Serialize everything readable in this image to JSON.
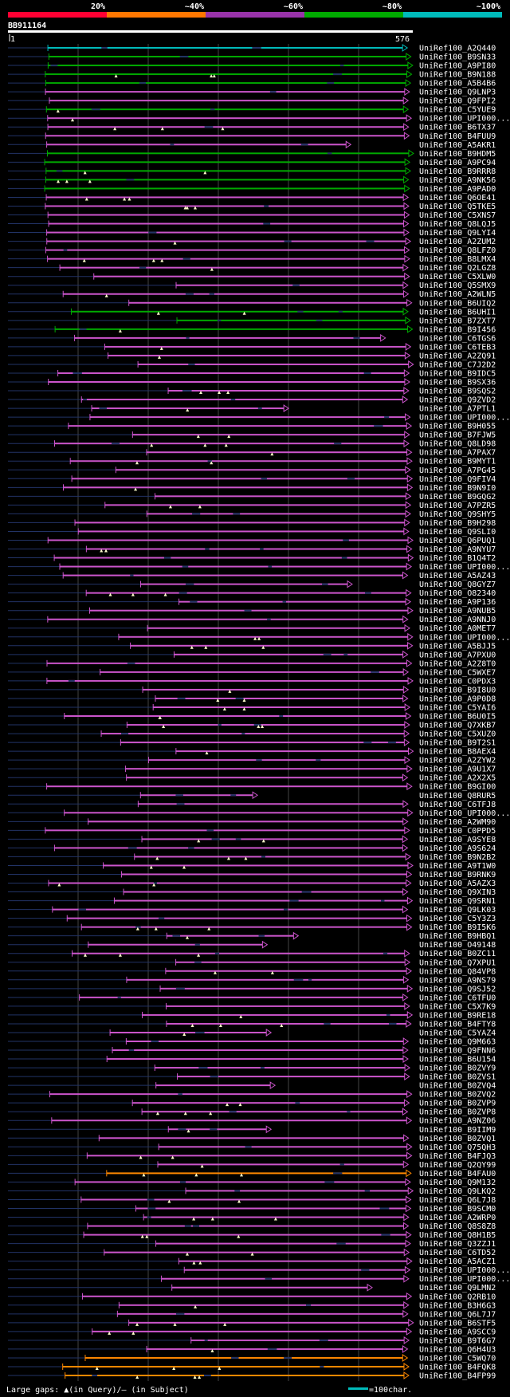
{
  "title": "BB911164",
  "scale": {
    "start": "1",
    "end": "576"
  },
  "identity_bins": [
    {
      "label": "20%",
      "color": "#ff0033"
    },
    {
      "label": "~40%",
      "color": "#ff7700"
    },
    {
      "label": "~60%",
      "color": "#9933aa"
    },
    {
      "label": "~80%",
      "color": "#00aa00"
    },
    {
      "label": "~100%",
      "color": "#00bbbb"
    }
  ],
  "hits": [
    {
      "name": "UniRef100_A2Q440",
      "color": "cyan"
    },
    {
      "name": "UniRef100_B9SN33",
      "color": "green"
    },
    {
      "name": "UniRef100_A9PI80",
      "color": "green"
    },
    {
      "name": "UniRef100_B9N188",
      "color": "green"
    },
    {
      "name": "UniRef100_A5B4B6",
      "color": "green"
    },
    {
      "name": "UniRef100_Q9LNP3",
      "color": "purple"
    },
    {
      "name": "UniRef100_Q9FPI2",
      "color": "purple"
    },
    {
      "name": "UniRef100_C5YUE9",
      "color": "green"
    },
    {
      "name": "UniRef100_UPI000...",
      "color": "purple"
    },
    {
      "name": "UniRef100_B6TX37",
      "color": "purple"
    },
    {
      "name": "UniRef100_B4FUU9",
      "color": "purple"
    },
    {
      "name": "UniRef100_A5AKR1",
      "color": "purple"
    },
    {
      "name": "UniRef100_B9HDM5",
      "color": "green"
    },
    {
      "name": "UniRef100_A9PC94",
      "color": "green"
    },
    {
      "name": "UniRef100_B9RRR8",
      "color": "green"
    },
    {
      "name": "UniRef100_A9NK56",
      "color": "green"
    },
    {
      "name": "UniRef100_A9PAD0",
      "color": "green"
    },
    {
      "name": "UniRef100_Q6OE41",
      "color": "purple"
    },
    {
      "name": "UniRef100_Q5TKE5",
      "color": "purple"
    },
    {
      "name": "UniRef100_C5XNS7",
      "color": "purple"
    },
    {
      "name": "UniRef100_Q8LQJ5",
      "color": "purple"
    },
    {
      "name": "UniRef100_Q9LYI4",
      "color": "purple"
    },
    {
      "name": "UniRef100_A2ZUM2",
      "color": "purple"
    },
    {
      "name": "UniRef100_Q8LFZ0",
      "color": "purple"
    },
    {
      "name": "UniRef100_B8LMX4",
      "color": "purple"
    },
    {
      "name": "UniRef100_Q2LGZ8",
      "color": "purple"
    },
    {
      "name": "UniRef100_C5XLW0",
      "color": "purple"
    },
    {
      "name": "UniRef100_Q5SMX9",
      "color": "purple"
    },
    {
      "name": "UniRef100_A2WLN5",
      "color": "purple"
    },
    {
      "name": "UniRef100_B6UIQ2",
      "color": "purple"
    },
    {
      "name": "UniRef100_B6UHI1",
      "color": "green"
    },
    {
      "name": "UniRef100_B7ZXT7",
      "color": "green"
    },
    {
      "name": "UniRef100_B9I456",
      "color": "green"
    },
    {
      "name": "UniRef100_C6TGS6",
      "color": "purple"
    },
    {
      "name": "UniRef100_C6TEB3",
      "color": "purple"
    },
    {
      "name": "UniRef100_A2ZQ91",
      "color": "purple"
    },
    {
      "name": "UniRef100_C7J2D2",
      "color": "purple"
    },
    {
      "name": "UniRef100_B9IDC5",
      "color": "purple"
    },
    {
      "name": "UniRef100_B9SX36",
      "color": "purple"
    },
    {
      "name": "UniRef100_B9SQS2",
      "color": "purple"
    },
    {
      "name": "UniRef100_Q9ZVD2",
      "color": "purple"
    },
    {
      "name": "UniRef100_A7PTL1",
      "color": "purple"
    },
    {
      "name": "UniRef100_UPI000...",
      "color": "purple"
    },
    {
      "name": "UniRef100_B9H055",
      "color": "purple"
    },
    {
      "name": "UniRef100_B7FJW5",
      "color": "purple"
    },
    {
      "name": "UniRef100_Q8LD98",
      "color": "purple"
    },
    {
      "name": "UniRef100_A7PAX7",
      "color": "purple"
    },
    {
      "name": "UniRef100_B9MYT1",
      "color": "purple"
    },
    {
      "name": "UniRef100_A7PG45",
      "color": "purple"
    },
    {
      "name": "UniRef100_Q9FIV4",
      "color": "purple"
    },
    {
      "name": "UniRef100_B9N9I0",
      "color": "purple"
    },
    {
      "name": "UniRef100_B9GQG2",
      "color": "purple"
    },
    {
      "name": "UniRef100_A7PZR5",
      "color": "purple"
    },
    {
      "name": "UniRef100_Q9SHY5",
      "color": "purple"
    },
    {
      "name": "UniRef100_B9H298",
      "color": "purple"
    },
    {
      "name": "UniRef100_Q9SLI0",
      "color": "purple"
    },
    {
      "name": "UniRef100_Q6PUQ1",
      "color": "purple"
    },
    {
      "name": "UniRef100_A9NYU7",
      "color": "purple"
    },
    {
      "name": "UniRef100_B1Q4T2",
      "color": "purple"
    },
    {
      "name": "UniRef100_UPI000...",
      "color": "purple"
    },
    {
      "name": "UniRef100_A5AZ43",
      "color": "purple"
    },
    {
      "name": "UniRef100_Q8GYZ7",
      "color": "purple"
    },
    {
      "name": "UniRef100_O82340",
      "color": "purple"
    },
    {
      "name": "UniRef100_A9P136",
      "color": "purple"
    },
    {
      "name": "UniRef100_A9NUB5",
      "color": "purple"
    },
    {
      "name": "UniRef100_A9NNJ0",
      "color": "purple"
    },
    {
      "name": "UniRef100_A0MET7",
      "color": "purple"
    },
    {
      "name": "UniRef100_UPI000...",
      "color": "purple"
    },
    {
      "name": "UniRef100_A5BJJ5",
      "color": "purple"
    },
    {
      "name": "UniRef100_A7PXU0",
      "color": "purple"
    },
    {
      "name": "UniRef100_A2Z8T0",
      "color": "purple"
    },
    {
      "name": "UniRef100_C5WXE7",
      "color": "purple"
    },
    {
      "name": "UniRef100_C0PDX3",
      "color": "purple"
    },
    {
      "name": "UniRef100_B9I8U0",
      "color": "purple"
    },
    {
      "name": "UniRef100_A9P0D8",
      "color": "purple"
    },
    {
      "name": "UniRef100_C5YAI6",
      "color": "purple"
    },
    {
      "name": "UniRef100_B6U0I5",
      "color": "purple"
    },
    {
      "name": "UniRef100_Q7XKB7",
      "color": "purple"
    },
    {
      "name": "UniRef100_C5XUZ0",
      "color": "purple"
    },
    {
      "name": "UniRef100_B9T2S1",
      "color": "purple"
    },
    {
      "name": "UniRef100_B8AEX4",
      "color": "purple"
    },
    {
      "name": "UniRef100_A2ZYW2",
      "color": "purple"
    },
    {
      "name": "UniRef100_A9U1X7",
      "color": "purple"
    },
    {
      "name": "UniRef100_A2X2X5",
      "color": "purple"
    },
    {
      "name": "UniRef100_B9GI00",
      "color": "purple"
    },
    {
      "name": "UniRef100_Q8RUR5",
      "color": "purple"
    },
    {
      "name": "UniRef100_C6TFJ8",
      "color": "purple"
    },
    {
      "name": "UniRef100_UPI000...",
      "color": "purple"
    },
    {
      "name": "UniRef100_A2WM90",
      "color": "purple"
    },
    {
      "name": "UniRef100_C0PPD5",
      "color": "purple"
    },
    {
      "name": "UniRef100_A9SYE8",
      "color": "purple"
    },
    {
      "name": "UniRef100_A9S624",
      "color": "purple"
    },
    {
      "name": "UniRef100_B9N2B2",
      "color": "purple"
    },
    {
      "name": "UniRef100_A9T1W0",
      "color": "purple"
    },
    {
      "name": "UniRef100_B9RNK9",
      "color": "purple"
    },
    {
      "name": "UniRef100_A5AZX3",
      "color": "purple"
    },
    {
      "name": "UniRef100_Q9XIN3",
      "color": "purple"
    },
    {
      "name": "UniRef100_Q9SRN1",
      "color": "purple"
    },
    {
      "name": "UniRef100_Q9LK03",
      "color": "purple"
    },
    {
      "name": "UniRef100_C5Y3Z3",
      "color": "purple"
    },
    {
      "name": "UniRef100_B9I5K6",
      "color": "purple"
    },
    {
      "name": "UniRef100_B9HBQ1",
      "color": "purple"
    },
    {
      "name": "UniRef100_O49148",
      "color": "purple"
    },
    {
      "name": "UniRef100_B0ZC11",
      "color": "purple"
    },
    {
      "name": "UniRef100_Q7XPU1",
      "color": "purple"
    },
    {
      "name": "UniRef100_Q84VP8",
      "color": "purple"
    },
    {
      "name": "UniRef100_A9NS79",
      "color": "purple"
    },
    {
      "name": "UniRef100_Q9SJ52",
      "color": "purple"
    },
    {
      "name": "UniRef100_C6TFU0",
      "color": "purple"
    },
    {
      "name": "UniRef100_C5X7K9",
      "color": "purple"
    },
    {
      "name": "UniRef100_B9RE18",
      "color": "purple"
    },
    {
      "name": "UniRef100_B4FTY8",
      "color": "purple"
    },
    {
      "name": "UniRef100_C5YAZ4",
      "color": "purple"
    },
    {
      "name": "UniRef100_Q9M663",
      "color": "purple"
    },
    {
      "name": "UniRef100_Q9FNN6",
      "color": "purple"
    },
    {
      "name": "UniRef100_B6U154",
      "color": "purple"
    },
    {
      "name": "UniRef100_B0ZVY9",
      "color": "purple"
    },
    {
      "name": "UniRef100_B0ZVS1",
      "color": "purple"
    },
    {
      "name": "UniRef100_B0ZVQ4",
      "color": "purple"
    },
    {
      "name": "UniRef100_B0ZVQ2",
      "color": "purple"
    },
    {
      "name": "UniRef100_B0ZVP9",
      "color": "purple"
    },
    {
      "name": "UniRef100_B0ZVP8",
      "color": "purple"
    },
    {
      "name": "UniRef100_A9NZ06",
      "color": "purple"
    },
    {
      "name": "UniRef100_B9IIM9",
      "color": "purple"
    },
    {
      "name": "UniRef100_B0ZVQ1",
      "color": "purple"
    },
    {
      "name": "UniRef100_Q75QH3",
      "color": "purple"
    },
    {
      "name": "UniRef100_B4FJQ3",
      "color": "purple"
    },
    {
      "name": "UniRef100_Q2QY99",
      "color": "purple"
    },
    {
      "name": "UniRef100_B4FAU0",
      "color": "orange"
    },
    {
      "name": "UniRef100_Q9M132",
      "color": "purple"
    },
    {
      "name": "UniRef100_Q9LKQ2",
      "color": "purple"
    },
    {
      "name": "UniRef100_Q6L7J8",
      "color": "purple"
    },
    {
      "name": "UniRef100_B9SCM0",
      "color": "purple"
    },
    {
      "name": "UniRef100_A2WRP0",
      "color": "purple"
    },
    {
      "name": "UniRef100_Q8S8Z8",
      "color": "purple"
    },
    {
      "name": "UniRef100_Q8H1B5",
      "color": "purple"
    },
    {
      "name": "UniRef100_Q3ZZJ1",
      "color": "purple"
    },
    {
      "name": "UniRef100_C6TD52",
      "color": "purple"
    },
    {
      "name": "UniRef100_A5ACZ1",
      "color": "purple"
    },
    {
      "name": "UniRef100_UPI000...",
      "color": "purple"
    },
    {
      "name": "UniRef100_UPI000...",
      "color": "purple"
    },
    {
      "name": "UniRef100_Q9LMN2",
      "color": "purple"
    },
    {
      "name": "UniRef100_Q2RB10",
      "color": "purple"
    },
    {
      "name": "UniRef100_B3H6G3",
      "color": "purple"
    },
    {
      "name": "UniRef100_Q6L7J7",
      "color": "purple"
    },
    {
      "name": "UniRef100_B6STF5",
      "color": "purple"
    },
    {
      "name": "UniRef100_A9SCC9",
      "color": "purple"
    },
    {
      "name": "UniRef100_B9T6G7",
      "color": "purple"
    },
    {
      "name": "UniRef100_Q6H4U3",
      "color": "purple"
    },
    {
      "name": "UniRef100_C5WQ70",
      "color": "orange"
    },
    {
      "name": "UniRef100_B4FQK8",
      "color": "orange"
    },
    {
      "name": "UniRef100_B4FP99",
      "color": "orange"
    }
  ],
  "palette": {
    "cyan": "#00bbbb",
    "green": "#00aa00",
    "purple": "#cc55cc",
    "orange": "#ff8800",
    "gap": "#223366"
  },
  "legend": {
    "text": "Large gaps: ▲(in Query)/– (in Subject)",
    "scale_text": "=100char.",
    "scale_color": "#00bbbb"
  }
}
